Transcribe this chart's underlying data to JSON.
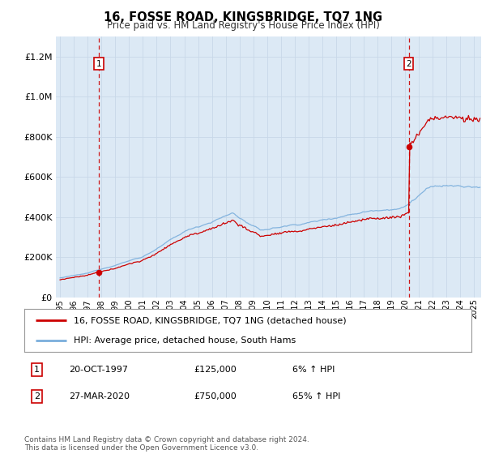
{
  "title": "16, FOSSE ROAD, KINGSBRIDGE, TQ7 1NG",
  "subtitle": "Price paid vs. HM Land Registry's House Price Index (HPI)",
  "legend_line1": "16, FOSSE ROAD, KINGSBRIDGE, TQ7 1NG (detached house)",
  "legend_line2": "HPI: Average price, detached house, South Hams",
  "annotation1_date": "20-OCT-1997",
  "annotation1_price": "£125,000",
  "annotation1_hpi": "6% ↑ HPI",
  "annotation2_date": "27-MAR-2020",
  "annotation2_price": "£750,000",
  "annotation2_hpi": "65% ↑ HPI",
  "footer": "Contains HM Land Registry data © Crown copyright and database right 2024.\nThis data is licensed under the Open Government Licence v3.0.",
  "price_color": "#cc0000",
  "hpi_color": "#7aaedc",
  "fig_bg_color": "#ffffff",
  "plot_bg_color": "#dce9f5",
  "vline_color": "#cc0000",
  "grid_color": "#c8d8e8",
  "ylim": [
    0,
    1300000
  ],
  "yticks": [
    0,
    200000,
    400000,
    600000,
    800000,
    1000000,
    1200000
  ],
  "xlim_start": 1994.7,
  "xlim_end": 2025.5,
  "sale1_year": 1997.8,
  "sale1_price": 125000,
  "sale2_year": 2020.25,
  "sale2_price": 750000
}
